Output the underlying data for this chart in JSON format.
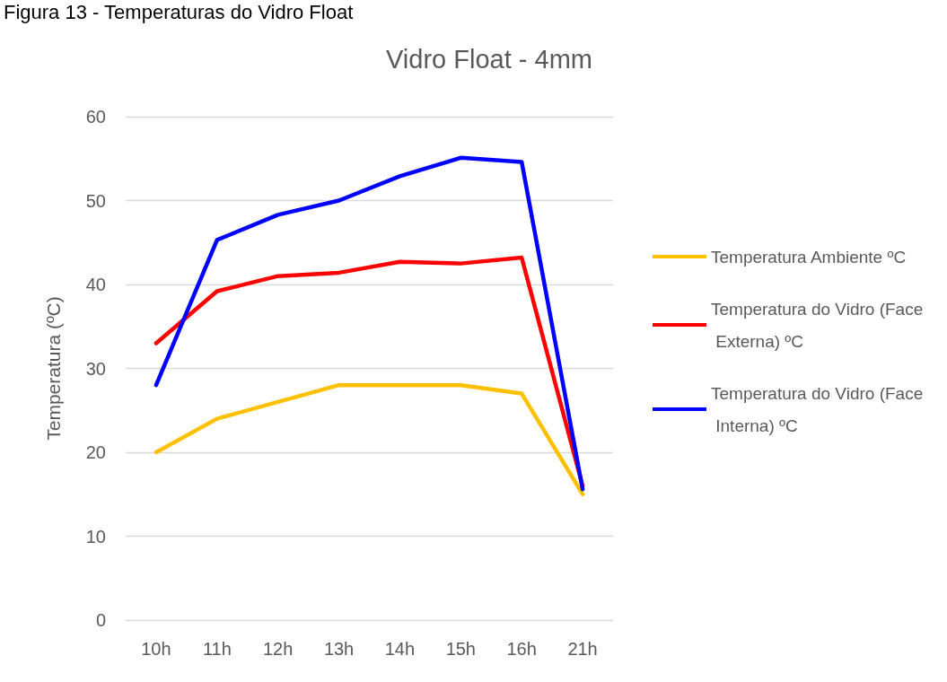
{
  "chart_data": {
    "type": "line",
    "title": "Vidro Float - 4mm",
    "ylabel": "Temperatura (ºC)",
    "annotations": [
      "Figura 13 - Temperaturas do Vidro Float"
    ],
    "categories": [
      "10h",
      "11h",
      "12h",
      "13h",
      "14h",
      "15h",
      "16h",
      "21h"
    ],
    "series": [
      {
        "name": "Temperatura Ambiente ºC",
        "color": "#ffc000",
        "values": [
          20,
          24,
          26,
          28,
          28,
          28,
          27,
          15
        ]
      },
      {
        "name": "Temperatura do Vidro (Face Externa) ºC",
        "color": "#ff0000",
        "values": [
          33,
          39.2,
          41,
          41.4,
          42.7,
          42.5,
          43.2,
          16
        ]
      },
      {
        "name": "Temperatura do Vidro (Face Interna) ºC",
        "color": "#0000ff",
        "values": [
          28,
          45.3,
          48.3,
          50,
          52.9,
          55.1,
          54.6,
          15.6
        ]
      }
    ],
    "ylim": [
      0,
      60
    ],
    "yticks": [
      0,
      10,
      20,
      30,
      40,
      50,
      60
    ],
    "grid": "y",
    "legend": "right",
    "marker": "none",
    "line_style": "solid"
  }
}
